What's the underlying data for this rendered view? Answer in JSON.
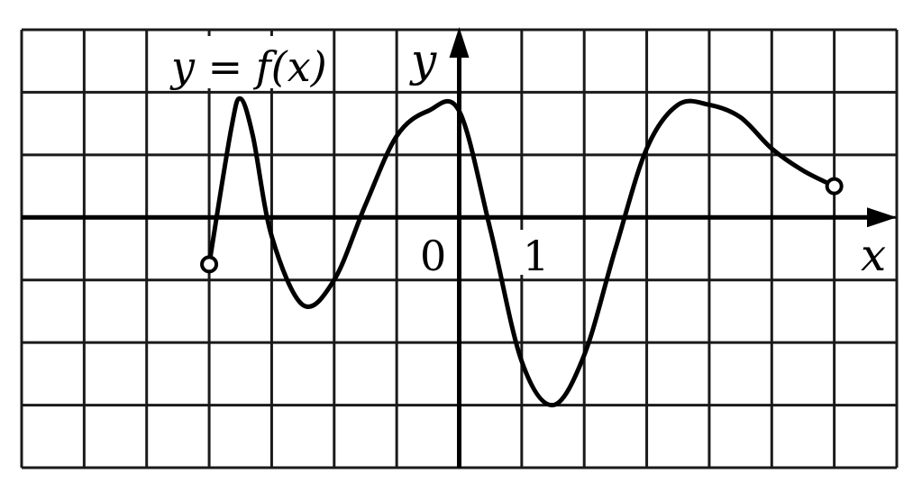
{
  "chart_data": {
    "type": "line",
    "function_label": "y = f(x)",
    "xlabel": "x",
    "ylabel": "y",
    "origin_label": "0",
    "unit_label": "1",
    "xlim": [
      -7,
      7
    ],
    "ylim": [
      -4,
      3
    ],
    "grid": true,
    "series": [
      {
        "name": "f(x)",
        "x": [
          -4,
          -3.65,
          -3.5,
          -3.3,
          -3,
          -2.5,
          -2,
          -1.5,
          -1,
          -0.5,
          0,
          0.5,
          1,
          1.5,
          2,
          2.5,
          3,
          3.5,
          4,
          4.5,
          5,
          5.5,
          6
        ],
        "y": [
          -0.75,
          1.4,
          1.9,
          1.3,
          -0.3,
          -1.4,
          -1.0,
          0.2,
          1.3,
          1.7,
          1.7,
          -0.2,
          -2.3,
          -3.0,
          -2.2,
          -0.5,
          1.1,
          1.8,
          1.8,
          1.6,
          1.1,
          0.75,
          0.5
        ]
      }
    ],
    "endpoints": [
      {
        "x": -4,
        "y": -0.75,
        "open": true
      },
      {
        "x": 6,
        "y": 0.5,
        "open": true
      }
    ]
  }
}
